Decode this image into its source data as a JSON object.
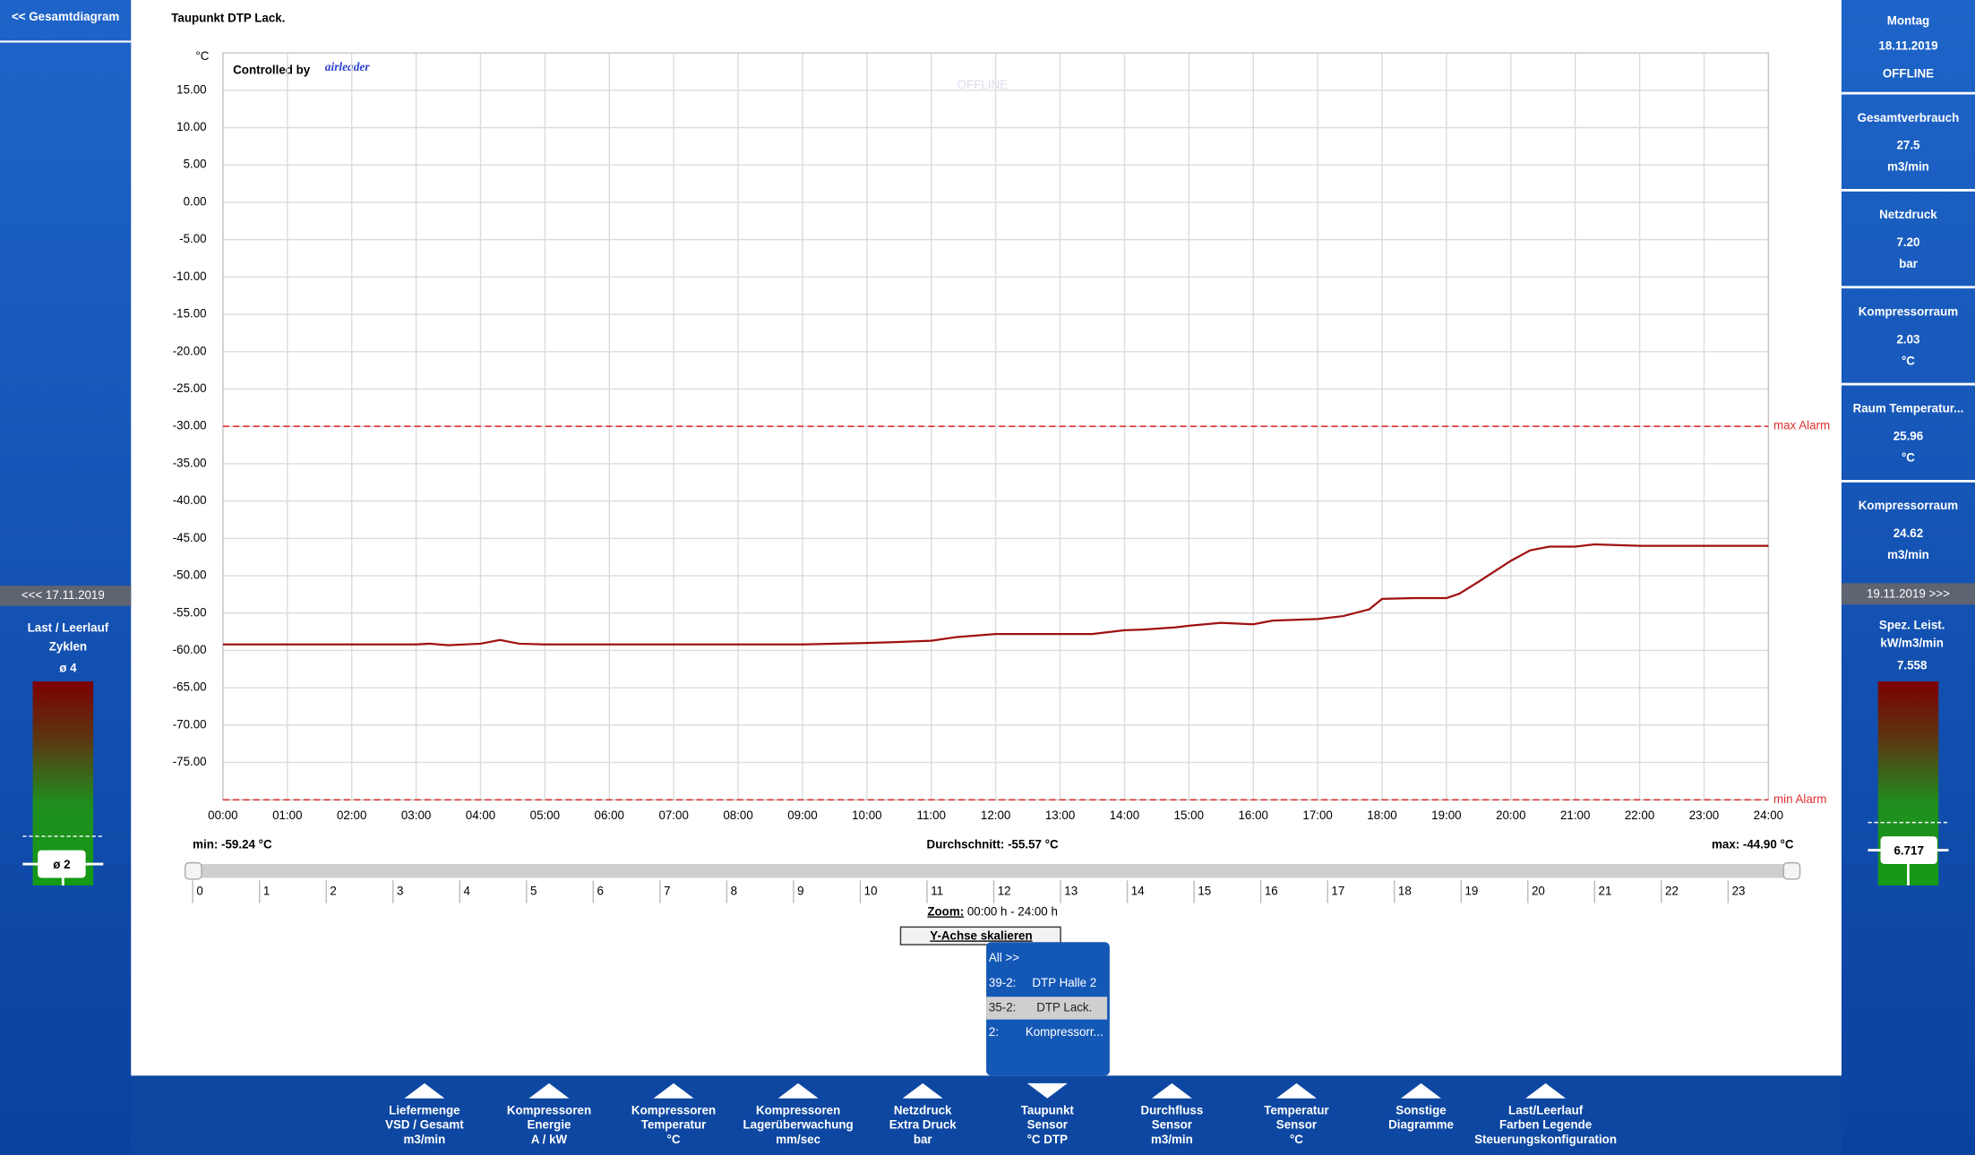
{
  "header": {
    "back": "<< Gesamtdiagram",
    "title": "Taupunkt DTP Lack.",
    "watermark": "OFFLINE",
    "brand_prefix": "Controlled by",
    "brand": "airleader"
  },
  "chart_data": {
    "type": "line",
    "y_label": "°C",
    "color": "#a01010",
    "grid": true,
    "xlim": [
      0,
      24
    ],
    "ylim": [
      -80,
      20
    ],
    "xticks": [
      {
        "value": 0,
        "label": "00:00"
      },
      {
        "value": 1,
        "label": "01:00"
      },
      {
        "value": 2,
        "label": "02:00"
      },
      {
        "value": 3,
        "label": "03:00"
      },
      {
        "value": 4,
        "label": "04:00"
      },
      {
        "value": 5,
        "label": "05:00"
      },
      {
        "value": 6,
        "label": "06:00"
      },
      {
        "value": 7,
        "label": "07:00"
      },
      {
        "value": 8,
        "label": "08:00"
      },
      {
        "value": 9,
        "label": "09:00"
      },
      {
        "value": 10,
        "label": "10:00"
      },
      {
        "value": 11,
        "label": "11:00"
      },
      {
        "value": 12,
        "label": "12:00"
      },
      {
        "value": 13,
        "label": "13:00"
      },
      {
        "value": 14,
        "label": "14:00"
      },
      {
        "value": 15,
        "label": "15:00"
      },
      {
        "value": 16,
        "label": "16:00"
      },
      {
        "value": 17,
        "label": "17:00"
      },
      {
        "value": 18,
        "label": "18:00"
      },
      {
        "value": 19,
        "label": "19:00"
      },
      {
        "value": 20,
        "label": "20:00"
      },
      {
        "value": 21,
        "label": "21:00"
      },
      {
        "value": 22,
        "label": "22:00"
      },
      {
        "value": 23,
        "label": "23:00"
      },
      {
        "value": 24,
        "label": "24:00"
      }
    ],
    "yticks": [
      {
        "value": 15,
        "label": "15.00"
      },
      {
        "value": 10,
        "label": "10.00"
      },
      {
        "value": 5,
        "label": "5.00"
      },
      {
        "value": 0,
        "label": "0.00"
      },
      {
        "value": -5,
        "label": "-5.00"
      },
      {
        "value": -10,
        "label": "-10.00"
      },
      {
        "value": -15,
        "label": "-15.00"
      },
      {
        "value": -20,
        "label": "-20.00"
      },
      {
        "value": -25,
        "label": "-25.00"
      },
      {
        "value": -30,
        "label": "-30.00"
      },
      {
        "value": -35,
        "label": "-35.00"
      },
      {
        "value": -40,
        "label": "-40.00"
      },
      {
        "value": -45,
        "label": "-45.00"
      },
      {
        "value": -50,
        "label": "-50.00"
      },
      {
        "value": -55,
        "label": "-55.00"
      },
      {
        "value": -60,
        "label": "-60.00"
      },
      {
        "value": -65,
        "label": "-65.00"
      },
      {
        "value": -70,
        "label": "-70.00"
      },
      {
        "value": -75,
        "label": "-75.00"
      }
    ],
    "annotations": [
      {
        "label": "max Alarm",
        "value": -30,
        "color": "#e03030"
      },
      {
        "label": "min Alarm",
        "value": -80,
        "color": "#e03030"
      }
    ],
    "x": [
      0,
      1,
      2,
      3,
      3.2,
      3.5,
      4,
      4.3,
      4.6,
      5,
      6,
      7,
      8,
      9,
      10,
      10.4,
      11,
      11.4,
      12,
      13,
      13.5,
      14,
      14.3,
      14.8,
      15,
      15.5,
      16,
      16.3,
      17,
      17.4,
      17.8,
      18,
      18.5,
      19,
      19.2,
      19.5,
      20,
      20.3,
      20.6,
      21,
      21.3,
      22,
      23,
      24
    ],
    "values": [
      -59.2,
      -59.2,
      -59.2,
      -59.2,
      -59.1,
      -59.3,
      -59.1,
      -58.6,
      -59.1,
      -59.2,
      -59.2,
      -59.2,
      -59.2,
      -59.2,
      -59.0,
      -58.9,
      -58.7,
      -58.2,
      -57.8,
      -57.8,
      -57.8,
      -57.3,
      -57.2,
      -56.9,
      -56.7,
      -56.3,
      -56.5,
      -56.0,
      -55.8,
      -55.4,
      -54.5,
      -53.1,
      -53.0,
      -53.0,
      -52.4,
      -50.8,
      -48.0,
      -46.6,
      -46.1,
      -46.1,
      -45.8,
      -46.0,
      -46.0,
      -46.0
    ]
  },
  "stats": {
    "min": "min: -59.24 °C",
    "avg": "Durchschnitt: -55.57 °C",
    "max": "max: -44.90 °C"
  },
  "slider": {
    "ticks": [
      0,
      1,
      2,
      3,
      4,
      5,
      6,
      7,
      8,
      9,
      10,
      11,
      12,
      13,
      14,
      15,
      16,
      17,
      18,
      19,
      20,
      21,
      22,
      23
    ]
  },
  "zoom": {
    "label": "Zoom:",
    "range": " 00:00 h - 24:00 h"
  },
  "button": "Y-Achse skalieren",
  "dropdown": {
    "selected": 2,
    "items": [
      {
        "name": "All >>"
      },
      {
        "id": "39-2:",
        "name": "DTP Halle 2"
      },
      {
        "id": "35-2:",
        "name": "DTP Lack."
      },
      {
        "id": "2:",
        "name": "Kompressorr..."
      }
    ]
  },
  "left": {
    "prev_day": "<<< 17.11.2019",
    "title": "Last / Leerlauf",
    "subtitle": "Zyklen",
    "avg": "ø 4",
    "marker": "ø 2"
  },
  "right": {
    "weekday": "Montag",
    "date": "18.11.2019",
    "status": "OFFLINE",
    "cards": [
      {
        "label": "Gesamtverbrauch",
        "value": "27.5",
        "unit": "m3/min"
      },
      {
        "label": "Netzdruck",
        "value": "7.20",
        "unit": "bar"
      },
      {
        "label": "Kompressorraum",
        "value": "2.03",
        "unit": "°C"
      },
      {
        "label": "Raum Temperatur...",
        "value": "25.96",
        "unit": "°C"
      },
      {
        "label": "Kompressorraum",
        "value": "24.62",
        "unit": "m3/min"
      }
    ],
    "next_day": "19.11.2019 >>>",
    "spec_label": "Spez. Leist.",
    "spec_unit": "kW/m3/min",
    "spec_value": "7.558",
    "spec_marker": "6.717"
  },
  "nav": [
    {
      "lines": [
        "Liefermenge",
        "VSD / Gesamt",
        "m3/min"
      ]
    },
    {
      "lines": [
        "Kompressoren",
        "Energie",
        "A / kW"
      ]
    },
    {
      "lines": [
        "Kompressoren",
        "Temperatur",
        "°C"
      ]
    },
    {
      "lines": [
        "Kompressoren",
        "Lagerüberwachung",
        "mm/sec"
      ]
    },
    {
      "lines": [
        "Netzdruck",
        "Extra Druck",
        "bar"
      ]
    },
    {
      "lines": [
        "Taupunkt",
        "Sensor",
        "°C DTP"
      ],
      "active": true
    },
    {
      "lines": [
        "Durchfluss",
        "Sensor",
        "m3/min"
      ]
    },
    {
      "lines": [
        "Temperatur",
        "Sensor",
        "°C"
      ]
    },
    {
      "lines": [
        "Sonstige",
        "Diagramme"
      ]
    },
    {
      "lines": [
        "Last/Leerlauf",
        "Farben Legende",
        "Steuerungskonfiguration"
      ]
    }
  ]
}
